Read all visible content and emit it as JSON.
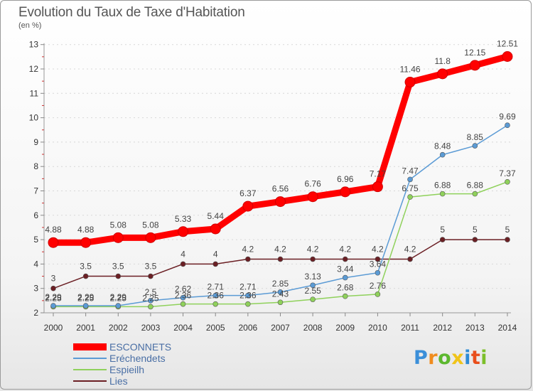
{
  "title": "Evolution du Taux de Taxe d'Habitation",
  "unit": "(en %)",
  "logo": {
    "letters": [
      "P",
      "r",
      "o",
      "x",
      "i",
      "t",
      "i"
    ],
    "colors": [
      "#3b8fd9",
      "#f08c1e",
      "#5cb82e",
      "#f0c419",
      "#2e8bd6",
      "#e94e1b",
      "#7cbf2a"
    ]
  },
  "chart_data": {
    "type": "line",
    "title": "Evolution du Taux de Taxe d'Habitation",
    "ylabel": "(en %)",
    "xlabel": "",
    "x": [
      "2000",
      "2001",
      "2002",
      "2003",
      "2004",
      "2005",
      "2006",
      "2007",
      "2008",
      "2009",
      "2010",
      "2011",
      "2012",
      "2013",
      "2014"
    ],
    "ylim": [
      2,
      13
    ],
    "yticks": [
      "2",
      "3",
      "4",
      "5",
      "6",
      "7",
      "8",
      "9",
      "10",
      "11",
      "12",
      "13"
    ],
    "legend_position": "bottom-left",
    "series": [
      {
        "name": "ESCONNETS",
        "color": "#ff0000",
        "values": [
          4.88,
          4.88,
          5.08,
          5.08,
          5.33,
          5.44,
          6.37,
          6.56,
          6.76,
          6.96,
          7.17,
          11.46,
          11.8,
          12.15,
          12.51
        ],
        "labels": [
          "4.88",
          "4.88",
          "5.08",
          "5.08",
          "5.33",
          "5.44",
          "6.37",
          "6.56",
          "6.76",
          "6.96",
          "7.17",
          "11.46",
          "11.8",
          "12.15",
          "12.51"
        ]
      },
      {
        "name": "Eréchendets",
        "color": "#5b9bd5",
        "values": [
          2.29,
          2.29,
          2.29,
          2.5,
          2.62,
          2.71,
          2.71,
          2.85,
          3.13,
          3.44,
          3.64,
          7.47,
          8.48,
          8.85,
          9.69
        ],
        "labels": [
          "2.29",
          "2.29",
          "2.29",
          "2.5",
          "2.62",
          "2.71",
          "2.71",
          "2.85",
          "3.13",
          "3.44",
          "3.64",
          "7.47",
          "8.48",
          "8.85",
          "9.69"
        ]
      },
      {
        "name": "Espieilh",
        "color": "#8fd15b",
        "values": [
          2.25,
          2.25,
          2.25,
          2.25,
          2.36,
          2.36,
          2.36,
          2.43,
          2.55,
          2.68,
          2.76,
          6.75,
          6.88,
          6.88,
          7.37
        ],
        "labels": [
          "2.25",
          "2.25",
          "2.25",
          "2.25",
          "2.36",
          "2.36",
          "2.36",
          "2.43",
          "2.55",
          "2.68",
          "2.76",
          "6.75",
          "6.88",
          "6.88",
          "7.37"
        ]
      },
      {
        "name": "Lies",
        "color": "#6b1f24",
        "values": [
          3,
          3.5,
          3.5,
          3.5,
          4,
          4,
          4.2,
          4.2,
          4.2,
          4.2,
          4.2,
          4.2,
          5,
          5,
          5
        ],
        "labels": [
          "3",
          "3.5",
          "3.5",
          "3.5",
          "4",
          "4",
          "4.2",
          "4.2",
          "4.2",
          "4.2",
          "4.2",
          "4.2",
          "5",
          "5",
          "5"
        ]
      }
    ]
  }
}
